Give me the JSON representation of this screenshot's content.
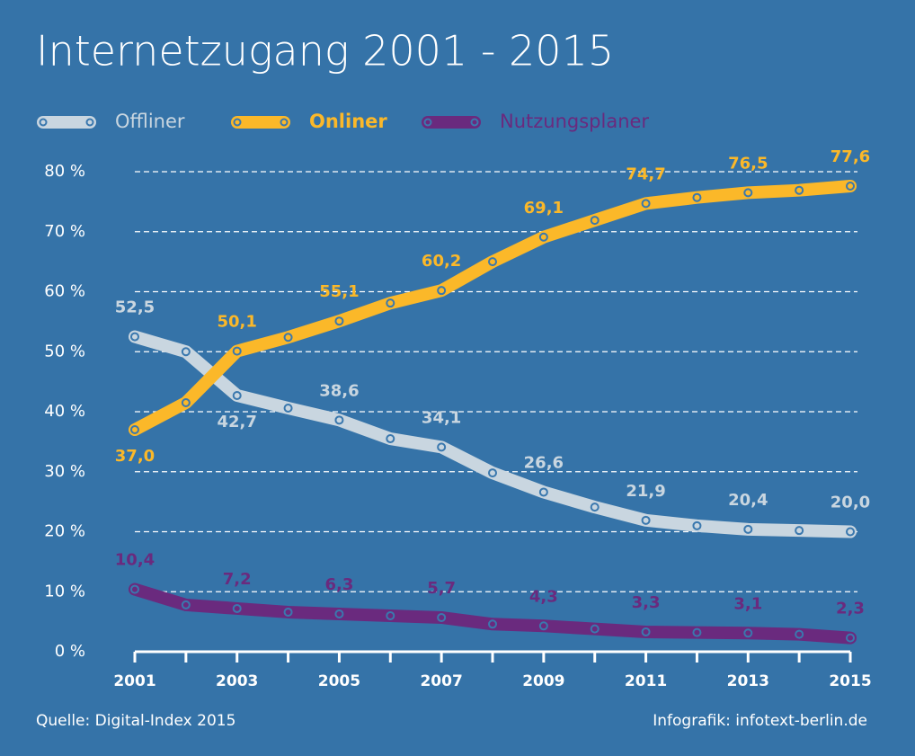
{
  "chart_data": {
    "type": "line",
    "title": "Internetzugang 2001 - 2015",
    "source": "Quelle: Digital-Index 2015",
    "credit": "Infografik: infotext-berlin.de",
    "x": [
      2001,
      2002,
      2003,
      2004,
      2005,
      2006,
      2007,
      2008,
      2009,
      2010,
      2011,
      2012,
      2013,
      2014,
      2015
    ],
    "xlim": [
      2001,
      2015
    ],
    "xticks": [
      2001,
      2003,
      2005,
      2007,
      2009,
      2011,
      2013,
      2015
    ],
    "ylim": [
      0,
      80
    ],
    "yticks": [
      {
        "value": 0,
        "label": "0 %"
      },
      {
        "value": 10,
        "label": "10 %"
      },
      {
        "value": 20,
        "label": "20 %"
      },
      {
        "value": 30,
        "label": "30 %"
      },
      {
        "value": 40,
        "label": "40 %"
      },
      {
        "value": 50,
        "label": "50 %"
      },
      {
        "value": 60,
        "label": "60 %"
      },
      {
        "value": 70,
        "label": "70 %"
      },
      {
        "value": 80,
        "label": "80 %"
      }
    ],
    "grid": true,
    "legend": "top-left",
    "series": [
      {
        "name": "Offliner",
        "color": "#c9d6e0",
        "values": [
          52.5,
          50.0,
          42.7,
          40.6,
          38.6,
          35.5,
          34.1,
          29.8,
          26.6,
          24.1,
          21.9,
          21.0,
          20.4,
          20.2,
          20.0
        ],
        "value_labels": [
          "52,5",
          null,
          "42,7",
          null,
          "38,6",
          null,
          "34,1",
          null,
          "26,6",
          null,
          "21,9",
          null,
          "20,4",
          null,
          "20,0"
        ]
      },
      {
        "name": "Onliner",
        "color": "#fbb829",
        "values": [
          37.0,
          41.5,
          50.1,
          52.4,
          55.1,
          58.1,
          60.2,
          65.0,
          69.1,
          71.9,
          74.7,
          75.7,
          76.5,
          76.9,
          77.6
        ],
        "value_labels": [
          "37,0",
          null,
          "50,1",
          null,
          "55,1",
          null,
          "60,2",
          null,
          "69,1",
          null,
          "74,7",
          null,
          "76,5",
          null,
          "77,6"
        ]
      },
      {
        "name": "Nutzungsplaner",
        "color": "#6a2a7e",
        "values": [
          10.4,
          7.8,
          7.2,
          6.6,
          6.3,
          6.0,
          5.7,
          4.6,
          4.3,
          3.8,
          3.3,
          3.2,
          3.1,
          2.9,
          2.3
        ],
        "value_labels": [
          "10,4",
          null,
          "7,2",
          null,
          "6,3",
          null,
          "5,7",
          null,
          "4,3",
          null,
          "3,3",
          null,
          "3,1",
          null,
          "2,3"
        ]
      }
    ]
  }
}
